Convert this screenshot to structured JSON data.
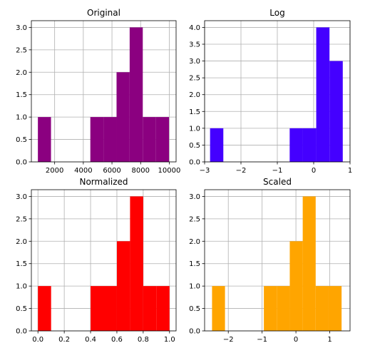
{
  "chart_data": [
    {
      "type": "bar",
      "title": "Original",
      "color": "#8b0080",
      "xlim": [
        375,
        10475
      ],
      "ylim": [
        0,
        3.15
      ],
      "xticks": [
        2000,
        4000,
        6000,
        8000,
        10000
      ],
      "xtick_labels": [
        "2000",
        "4000",
        "6000",
        "8000",
        "10000"
      ],
      "yticks": [
        0,
        0.5,
        1,
        1.5,
        2,
        2.5,
        3
      ],
      "ytick_labels": [
        "0.0",
        "0.5",
        "1.0",
        "1.5",
        "2.0",
        "2.5",
        "3.0"
      ],
      "bin_edges": [
        830,
        1745,
        2660,
        3575,
        4490,
        5405,
        6320,
        7235,
        8150,
        9065,
        9980
      ],
      "counts": [
        1,
        0,
        0,
        0,
        1,
        1,
        2,
        3,
        1,
        1
      ],
      "grid": true
    },
    {
      "type": "bar",
      "title": "Log",
      "color": "#4400ff",
      "xlim": [
        -3.0,
        1.0
      ],
      "ylim": [
        0,
        4.2
      ],
      "xticks": [
        -3,
        -2,
        -1,
        0,
        1
      ],
      "xtick_labels": [
        "−3",
        "−2",
        "−1",
        "0",
        "1"
      ],
      "yticks": [
        0,
        0.5,
        1,
        1.5,
        2,
        2.5,
        3,
        3.5,
        4
      ],
      "ytick_labels": [
        "0.0",
        "0.5",
        "1.0",
        "1.5",
        "2.0",
        "2.5",
        "3.0",
        "3.5",
        "4.0"
      ],
      "bin_edges": [
        -2.85,
        -2.485,
        -2.12,
        -1.755,
        -1.39,
        -1.025,
        -0.66,
        -0.295,
        0.07,
        0.435,
        0.8
      ],
      "counts": [
        1,
        0,
        0,
        0,
        0,
        0,
        1,
        1,
        4,
        3
      ],
      "grid": true
    },
    {
      "type": "bar",
      "title": "Normalized",
      "color": "#ff0000",
      "xlim": [
        -0.05,
        1.05
      ],
      "ylim": [
        0,
        3.15
      ],
      "xticks": [
        0,
        0.2,
        0.4,
        0.6,
        0.8,
        1.0
      ],
      "xtick_labels": [
        "0.0",
        "0.2",
        "0.4",
        "0.6",
        "0.8",
        "1.0"
      ],
      "yticks": [
        0,
        0.5,
        1,
        1.5,
        2,
        2.5,
        3
      ],
      "ytick_labels": [
        "0.0",
        "0.5",
        "1.0",
        "1.5",
        "2.0",
        "2.5",
        "3.0"
      ],
      "bin_edges": [
        0,
        0.1,
        0.2,
        0.3,
        0.4,
        0.5,
        0.6,
        0.7,
        0.8,
        0.9,
        1.0
      ],
      "counts": [
        1,
        0,
        0,
        0,
        1,
        1,
        2,
        3,
        1,
        1
      ],
      "grid": true
    },
    {
      "type": "bar",
      "title": "Scaled",
      "color": "#ffa500",
      "xlim": [
        -2.7,
        1.6
      ],
      "ylim": [
        0,
        3.15
      ],
      "xticks": [
        -2,
        -1,
        0,
        1
      ],
      "xtick_labels": [
        "−2",
        "−1",
        "0",
        "1"
      ],
      "yticks": [
        0,
        0.5,
        1,
        1.5,
        2,
        2.5,
        3
      ],
      "ytick_labels": [
        "0.0",
        "0.5",
        "1.0",
        "1.5",
        "2.0",
        "2.5",
        "3.0"
      ],
      "bin_edges": [
        -2.48,
        -2.097,
        -1.714,
        -1.331,
        -0.948,
        -0.565,
        -0.182,
        0.201,
        0.584,
        0.967,
        1.35
      ],
      "counts": [
        1,
        0,
        0,
        0,
        1,
        1,
        2,
        3,
        1,
        1
      ],
      "grid": true
    }
  ]
}
